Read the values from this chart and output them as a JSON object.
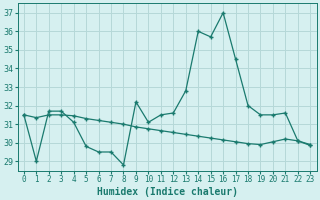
{
  "x": [
    0,
    1,
    2,
    3,
    4,
    5,
    6,
    7,
    8,
    9,
    10,
    11,
    12,
    13,
    14,
    15,
    16,
    17,
    18,
    19,
    20,
    21,
    22,
    23
  ],
  "line1": [
    31.5,
    29.0,
    31.7,
    31.7,
    31.1,
    29.8,
    29.5,
    29.5,
    28.8,
    32.2,
    31.1,
    31.5,
    31.6,
    32.8,
    36.0,
    35.7,
    37.0,
    34.5,
    32.0,
    31.5,
    31.5,
    31.6,
    30.1,
    29.9
  ],
  "line2": [
    31.5,
    31.35,
    31.5,
    31.5,
    31.45,
    31.3,
    31.2,
    31.1,
    31.0,
    30.85,
    30.75,
    30.65,
    30.55,
    30.45,
    30.35,
    30.25,
    30.15,
    30.05,
    29.95,
    29.9,
    30.05,
    30.2,
    30.1,
    29.85
  ],
  "line_color": "#1a7a6e",
  "bg_color": "#d6f0f0",
  "grid_color": "#b5d8d8",
  "xlabel": "Humidex (Indice chaleur)",
  "ylim": [
    28.5,
    37.5
  ],
  "xlim": [
    -0.5,
    23.5
  ],
  "yticks": [
    29,
    30,
    31,
    32,
    33,
    34,
    35,
    36,
    37
  ],
  "xticks": [
    0,
    1,
    2,
    3,
    4,
    5,
    6,
    7,
    8,
    9,
    10,
    11,
    12,
    13,
    14,
    15,
    16,
    17,
    18,
    19,
    20,
    21,
    22,
    23
  ],
  "tick_fontsize": 6,
  "xlabel_fontsize": 7
}
